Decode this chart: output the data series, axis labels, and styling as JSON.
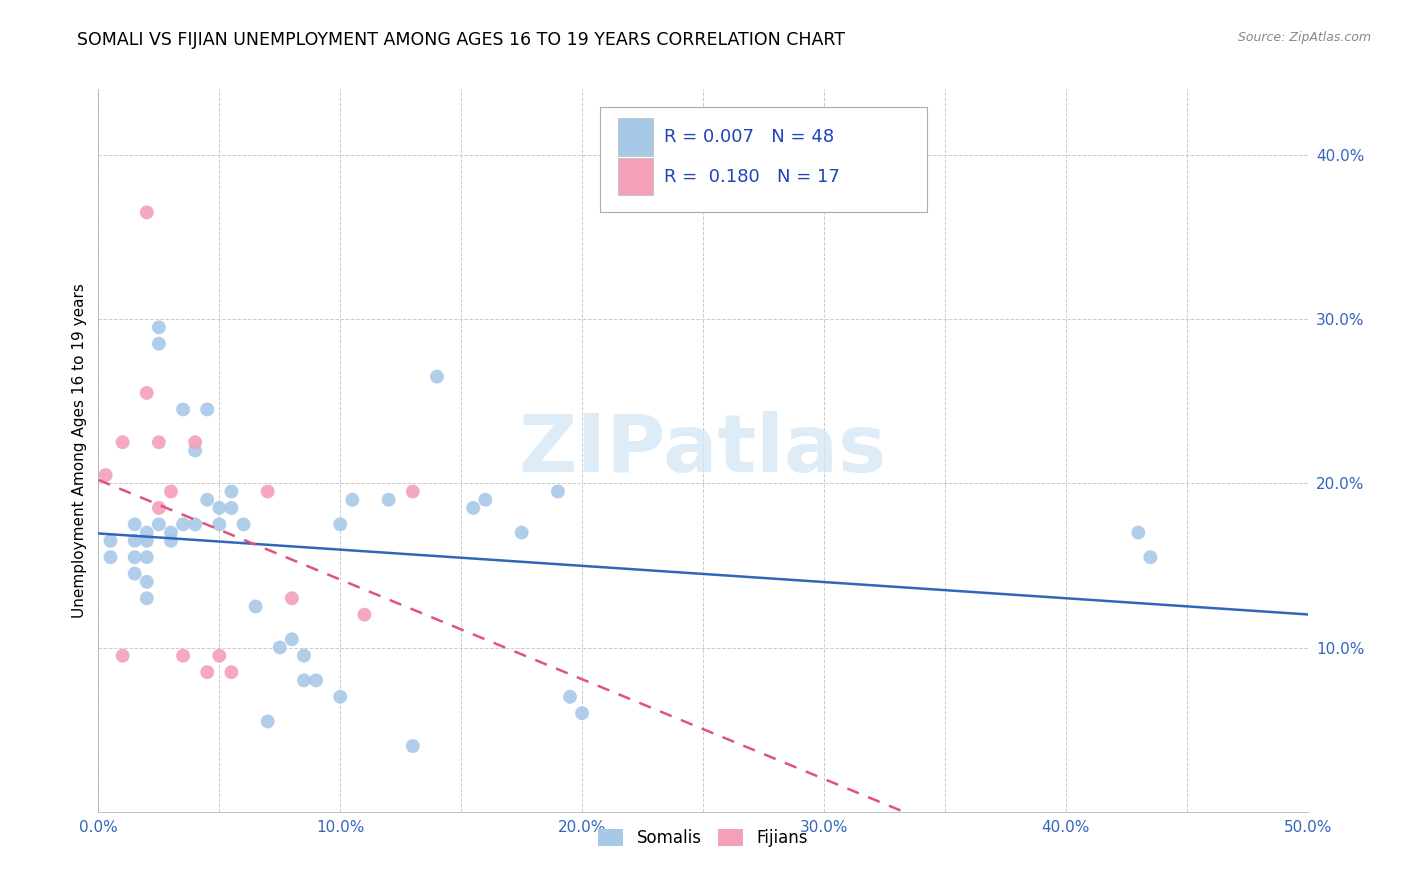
{
  "title": "SOMALI VS FIJIAN UNEMPLOYMENT AMONG AGES 16 TO 19 YEARS CORRELATION CHART",
  "source": "Source: ZipAtlas.com",
  "ylabel": "Unemployment Among Ages 16 to 19 years",
  "xlim": [
    0.0,
    0.5
  ],
  "ylim": [
    0.0,
    0.44
  ],
  "xtick_labels": [
    "0.0%",
    "",
    "10.0%",
    "",
    "20.0%",
    "",
    "30.0%",
    "",
    "40.0%",
    "",
    "50.0%"
  ],
  "xtick_vals": [
    0.0,
    0.05,
    0.1,
    0.15,
    0.2,
    0.25,
    0.3,
    0.35,
    0.4,
    0.45,
    0.5
  ],
  "ytick_labels": [
    "10.0%",
    "20.0%",
    "30.0%",
    "40.0%"
  ],
  "ytick_vals": [
    0.1,
    0.2,
    0.3,
    0.4
  ],
  "somali_R": 0.007,
  "somali_N": 48,
  "fijian_R": 0.18,
  "fijian_N": 17,
  "somali_color": "#a8c8e8",
  "fijian_color": "#f4a0b8",
  "somali_line_color": "#3366bb",
  "fijian_line_color": "#dd5577",
  "tick_color": "#3366bb",
  "legend_color": "#2244bb",
  "watermark_color": "#d0e4f4",
  "watermark": "ZIPatlas",
  "somali_x": [
    0.005,
    0.005,
    0.015,
    0.015,
    0.015,
    0.015,
    0.02,
    0.02,
    0.02,
    0.02,
    0.02,
    0.025,
    0.025,
    0.025,
    0.03,
    0.03,
    0.035,
    0.035,
    0.04,
    0.04,
    0.045,
    0.045,
    0.05,
    0.05,
    0.055,
    0.055,
    0.06,
    0.065,
    0.07,
    0.075,
    0.08,
    0.085,
    0.085,
    0.09,
    0.1,
    0.1,
    0.105,
    0.12,
    0.13,
    0.14,
    0.155,
    0.16,
    0.175,
    0.19,
    0.195,
    0.2,
    0.43,
    0.435
  ],
  "somali_y": [
    0.165,
    0.155,
    0.175,
    0.165,
    0.155,
    0.145,
    0.17,
    0.165,
    0.155,
    0.14,
    0.13,
    0.295,
    0.285,
    0.175,
    0.17,
    0.165,
    0.245,
    0.175,
    0.22,
    0.175,
    0.245,
    0.19,
    0.185,
    0.175,
    0.195,
    0.185,
    0.175,
    0.125,
    0.055,
    0.1,
    0.105,
    0.095,
    0.08,
    0.08,
    0.175,
    0.07,
    0.19,
    0.19,
    0.04,
    0.265,
    0.185,
    0.19,
    0.17,
    0.195,
    0.07,
    0.06,
    0.17,
    0.155
  ],
  "fijian_x": [
    0.003,
    0.01,
    0.01,
    0.02,
    0.02,
    0.025,
    0.025,
    0.03,
    0.035,
    0.04,
    0.045,
    0.05,
    0.055,
    0.07,
    0.08,
    0.11,
    0.13
  ],
  "fijian_y": [
    0.205,
    0.225,
    0.095,
    0.365,
    0.255,
    0.225,
    0.185,
    0.195,
    0.095,
    0.225,
    0.085,
    0.095,
    0.085,
    0.195,
    0.13,
    0.12,
    0.195
  ],
  "grid_color": "#cccccc",
  "background_color": "#ffffff",
  "title_fontsize": 12.5,
  "axis_fontsize": 11,
  "tick_fontsize": 11,
  "marker_size": 100
}
